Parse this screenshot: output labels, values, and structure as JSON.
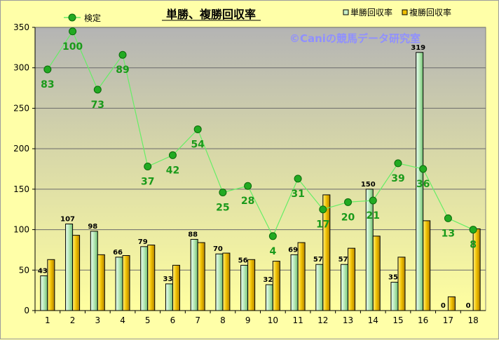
{
  "chart_data": {
    "type": "bar",
    "title": "単勝、複勝回収率",
    "watermark": "©Caniの競馬データ研究室",
    "categories": [
      "1",
      "2",
      "3",
      "4",
      "5",
      "6",
      "7",
      "8",
      "9",
      "10",
      "11",
      "12",
      "13",
      "14",
      "15",
      "16",
      "17",
      "18"
    ],
    "ylim": [
      0,
      350
    ],
    "yticks": [
      0,
      50,
      100,
      150,
      200,
      250,
      300,
      350
    ],
    "grid": true,
    "legend_placement": "top",
    "series": [
      {
        "name": "単勝回収率",
        "kind": "bar",
        "color": "#c8f0c8",
        "values": [
          43,
          107,
          98,
          66,
          79,
          33,
          88,
          70,
          56,
          32,
          69,
          57,
          57,
          150,
          35,
          319,
          0,
          0
        ],
        "show_labels": true
      },
      {
        "name": "複勝回収率",
        "kind": "bar",
        "color": "#f0c000",
        "values": [
          63,
          93,
          69,
          68,
          81,
          56,
          84,
          71,
          63,
          61,
          84,
          143,
          77,
          92,
          66,
          111,
          17,
          101
        ],
        "show_labels": false
      },
      {
        "name": "検定",
        "kind": "line",
        "color": "#33cc33",
        "y_positions": [
          298,
          345,
          273,
          316,
          178,
          192,
          224,
          146,
          154,
          92,
          163,
          125,
          134,
          136,
          182,
          175,
          114,
          100
        ],
        "labels": [
          "83",
          "100",
          "73",
          "89",
          "37",
          "42",
          "54",
          "25",
          "28",
          "4",
          "31",
          "17",
          "20",
          "21",
          "39",
          "36",
          "13",
          "8"
        ]
      }
    ]
  }
}
